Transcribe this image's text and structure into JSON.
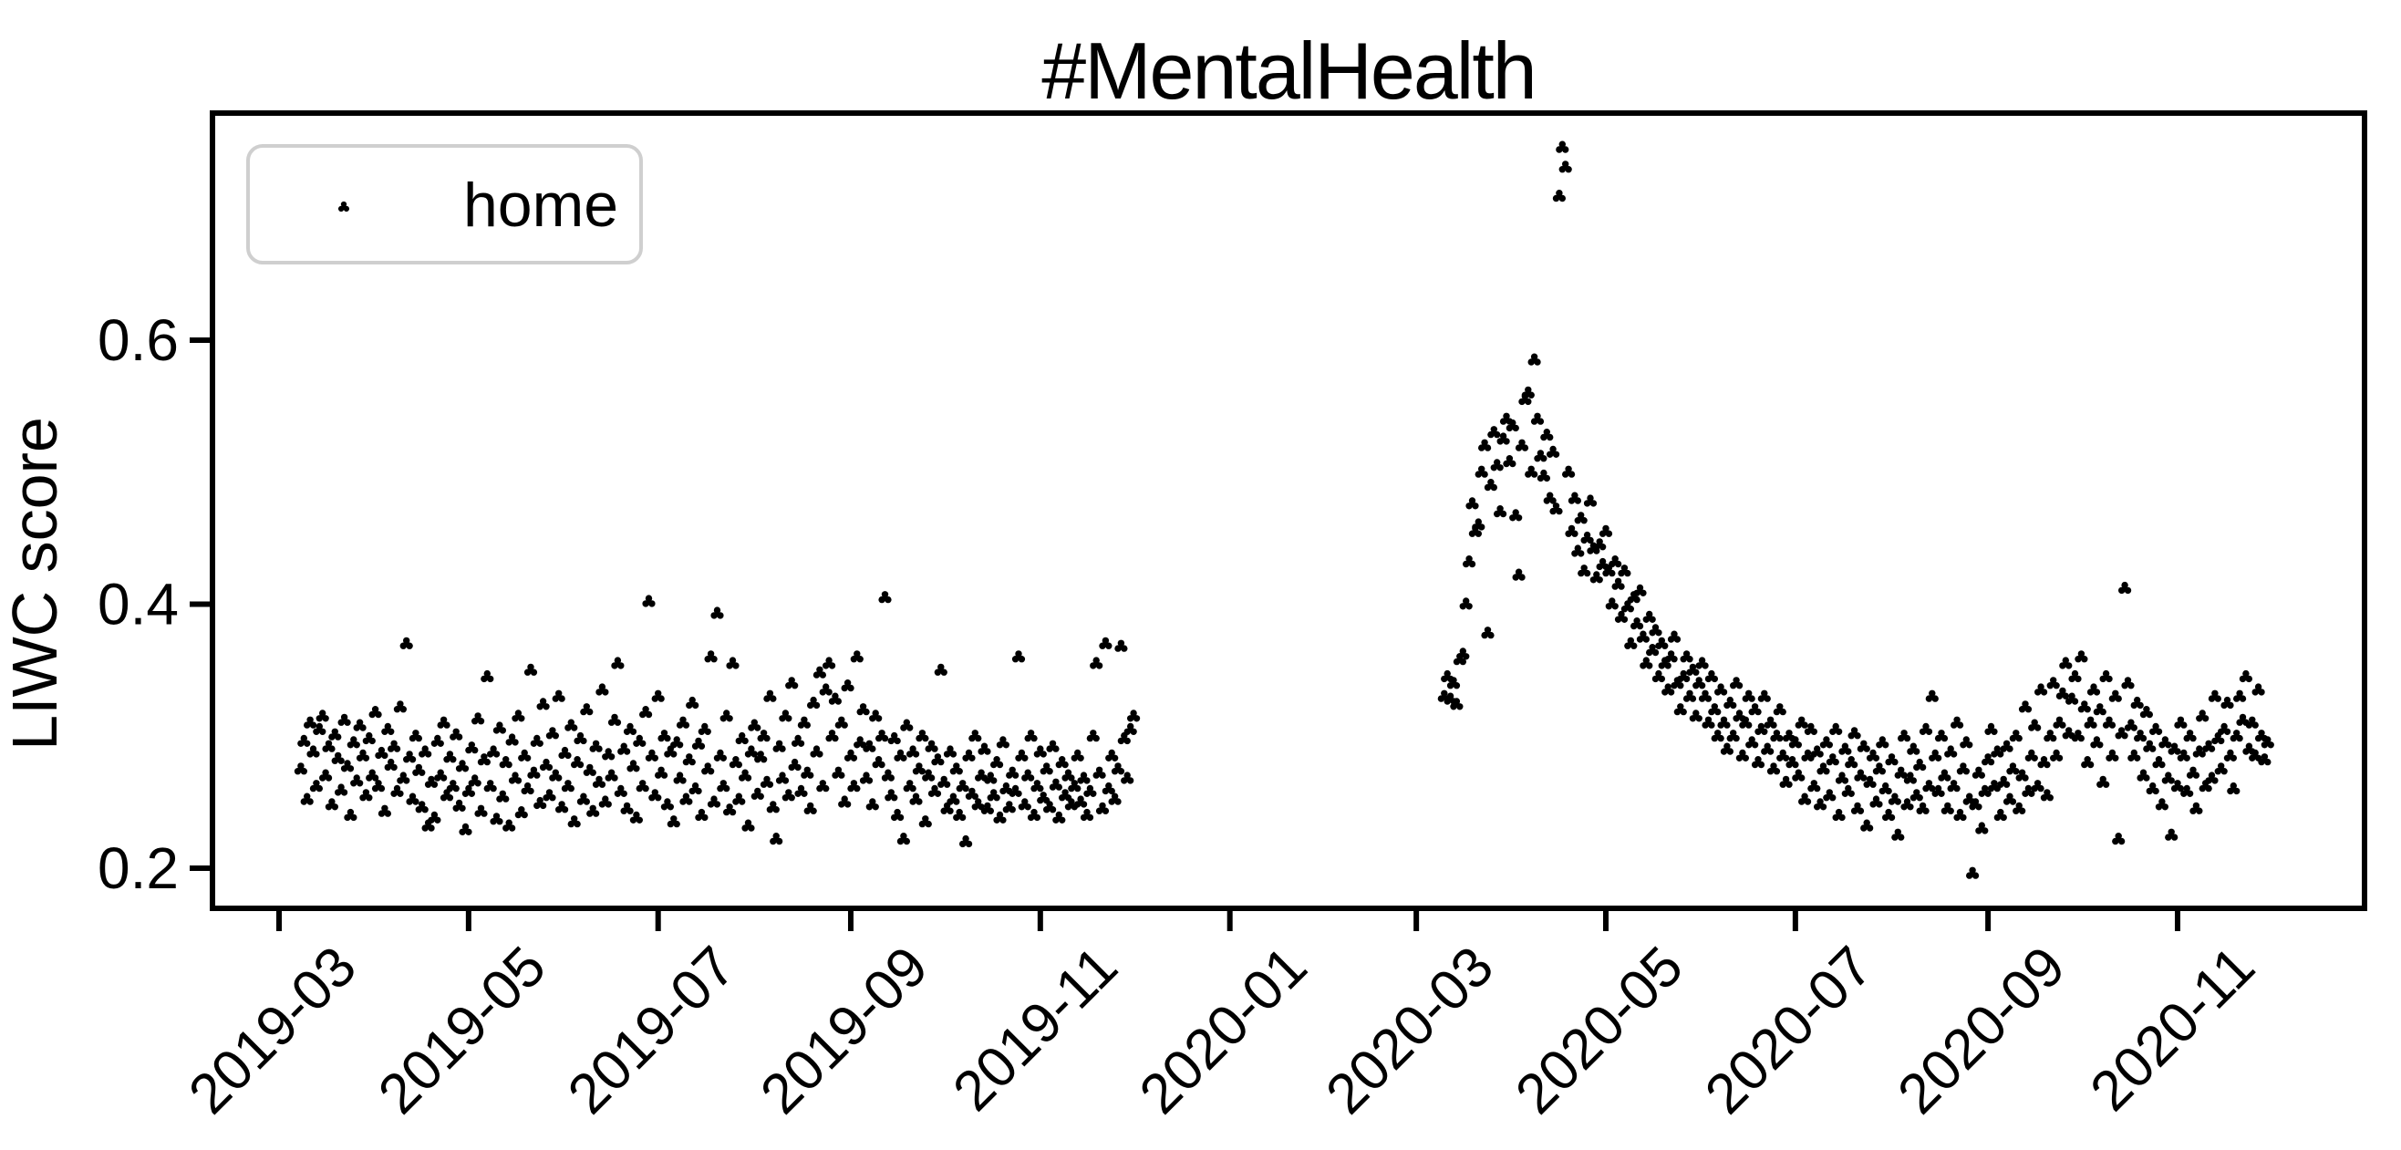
{
  "figure": {
    "background": "#ffffff",
    "ink_color": "#000000",
    "legend_border_color": "#cfcfcf"
  },
  "chart_data": {
    "type": "scatter",
    "title": "#MentalHealth",
    "xlabel": "",
    "ylabel": "LIWC score",
    "grid": false,
    "legend_position": "upper left",
    "legend_entries": [
      "home"
    ],
    "marker": "tri-clover",
    "marker_color": "#000000",
    "ylim": [
      0.17,
      0.772
    ],
    "xlim": [
      "2019-02-07",
      "2020-12-30"
    ],
    "y_ticks": [
      0.2,
      0.4,
      0.6
    ],
    "y_tick_labels": [
      "0.2",
      "0.4",
      "0.6"
    ],
    "x_ticks": [
      {
        "date": "2019-03-01",
        "label": "2019-03"
      },
      {
        "date": "2019-05-01",
        "label": "2019-05"
      },
      {
        "date": "2019-07-01",
        "label": "2019-07"
      },
      {
        "date": "2019-09-01",
        "label": "2019-09"
      },
      {
        "date": "2019-11-01",
        "label": "2019-11"
      },
      {
        "date": "2020-01-01",
        "label": "2020-01"
      },
      {
        "date": "2020-03-01",
        "label": "2020-03"
      },
      {
        "date": "2020-05-01",
        "label": "2020-05"
      },
      {
        "date": "2020-07-01",
        "label": "2020-07"
      },
      {
        "date": "2020-09-01",
        "label": "2020-09"
      },
      {
        "date": "2020-11-01",
        "label": "2020-11"
      }
    ],
    "series": [
      {
        "name": "home",
        "segments": [
          {
            "start": "2019-03-08",
            "step_days": 1,
            "values": [
              0.275,
              0.296,
              0.252,
              0.31,
              0.288,
              0.262,
              0.305,
              0.315,
              0.27,
              0.292,
              0.248,
              0.301,
              0.283,
              0.259,
              0.312,
              0.277,
              0.24,
              0.295,
              0.266,
              0.308,
              0.285,
              0.255,
              0.298,
              0.27,
              0.318,
              0.262,
              0.287,
              0.243,
              0.305,
              0.278,
              0.292,
              0.258,
              0.322,
              0.268,
              0.37,
              0.284,
              0.252,
              0.3,
              0.274,
              0.246,
              0.288,
              0.232,
              0.265,
              0.238,
              0.296,
              0.27,
              0.31,
              0.255,
              0.284,
              0.262,
              0.301,
              0.247,
              0.277,
              0.229,
              0.258,
              0.291,
              0.266,
              0.313,
              0.243,
              0.282,
              0.345,
              0.262,
              0.288,
              0.237,
              0.306,
              0.254,
              0.28,
              0.232,
              0.297,
              0.268,
              0.315,
              0.242,
              0.285,
              0.26,
              0.35,
              0.272,
              0.296,
              0.249,
              0.324,
              0.278,
              0.255,
              0.302,
              0.27,
              0.33,
              0.246,
              0.287,
              0.262,
              0.308,
              0.235,
              0.28,
              0.298,
              0.252,
              0.32,
              0.274,
              0.243,
              0.292,
              0.265,
              0.335,
              0.25,
              0.286,
              0.27,
              0.312,
              0.355,
              0.258,
              0.29,
              0.245,
              0.305,
              0.277,
              0.238,
              0.296,
              0.262,
              0.318,
              0.402,
              0.285,
              0.255,
              0.33,
              0.272,
              0.3,
              0.248,
              0.288,
              0.235,
              0.295,
              0.268,
              0.31,
              0.252,
              0.282,
              0.325,
              0.26,
              0.294,
              0.24,
              0.305,
              0.275,
              0.36,
              0.25,
              0.393,
              0.285,
              0.262,
              0.315,
              0.244,
              0.355,
              0.28,
              0.252,
              0.298,
              0.27,
              0.232,
              0.288,
              0.308,
              0.256,
              0.284,
              0.3,
              0.265,
              0.33,
              0.246,
              0.222,
              0.292,
              0.268,
              0.315,
              0.255,
              0.34,
              0.278,
              0.296,
              0.258,
              0.31,
              0.272,
              0.245,
              0.325,
              0.288,
              0.348,
              0.262,
              0.335,
              0.355,
              0.3,
              0.328,
              0.272,
              0.31,
              0.25,
              0.338,
              0.285,
              0.262,
              0.36,
              0.295,
              0.32,
              0.268,
              0.292,
              0.248,
              0.315,
              0.28,
              0.3,
              0.405,
              0.27,
              0.255,
              0.298,
              0.24,
              0.285,
              0.222,
              0.308,
              0.262,
              0.288,
              0.252,
              0.275,
              0.3,
              0.235,
              0.27,
              0.292,
              0.258,
              0.282,
              0.35,
              0.265,
              0.245,
              0.288,
              0.252,
              0.275,
              0.24,
              0.262,
              0.22,
              0.285,
              0.256,
              0.3,
              0.248,
              0.27,
              0.29,
              0.245,
              0.268,
              0.255,
              0.28,
              0.238,
              0.295,
              0.26,
              0.246,
              0.272,
              0.258,
              0.36,
              0.285,
              0.248,
              0.27,
              0.3,
              0.24,
              0.262,
              0.288,
              0.253,
              0.275,
              0.246,
              0.292,
              0.263,
              0.238,
              0.28,
              0.255,
              0.27,
              0.248,
              0.262,
              0.285,
              0.25,
              0.268,
              0.24,
              0.258,
              0.3,
              0.355,
              0.272,
              0.245,
              0.37,
              0.26,
              0.285,
              0.252,
              0.275,
              0.368,
              0.298,
              0.268,
              0.305,
              0.315
            ]
          },
          {
            "start": "2020-03-10",
            "step_days": 1,
            "values": [
              0.33,
              0.345,
              0.328,
              0.34,
              0.324,
              0.358,
              0.362,
              0.4,
              0.432,
              0.476,
              0.455,
              0.46,
              0.5,
              0.52,
              0.378,
              0.49,
              0.53,
              0.505,
              0.47,
              0.525,
              0.54,
              0.508,
              0.535,
              0.467,
              0.422,
              0.52,
              0.555,
              0.56,
              0.5,
              0.585,
              0.54,
              0.512,
              0.497,
              0.528,
              0.48,
              0.515,
              0.472,
              0.709,
              0.746,
              0.731,
              0.5,
              0.455,
              0.48,
              0.44,
              0.465,
              0.425,
              0.45,
              0.478,
              0.442,
              0.42,
              0.445,
              0.43,
              0.455,
              0.425,
              0.4,
              0.432,
              0.415,
              0.39,
              0.425,
              0.398,
              0.37,
              0.405,
              0.385,
              0.41,
              0.375,
              0.355,
              0.39,
              0.365,
              0.38,
              0.345,
              0.37,
              0.355,
              0.335,
              0.36,
              0.375,
              0.34,
              0.32,
              0.345,
              0.36,
              0.33,
              0.35,
              0.315,
              0.34,
              0.355,
              0.33,
              0.31,
              0.345,
              0.32,
              0.3,
              0.335,
              0.31,
              0.29,
              0.325,
              0.3,
              0.34,
              0.315,
              0.285,
              0.31,
              0.33,
              0.295,
              0.32,
              0.28,
              0.305,
              0.33,
              0.29,
              0.31,
              0.275,
              0.3,
              0.32,
              0.285,
              0.265,
              0.3,
              0.28,
              0.295,
              0.27,
              0.31,
              0.252,
              0.285,
              0.305,
              0.262,
              0.288,
              0.248,
              0.275,
              0.295,
              0.255,
              0.282,
              0.305,
              0.24,
              0.268,
              0.29,
              0.258,
              0.28,
              0.302,
              0.245,
              0.27,
              0.292,
              0.232,
              0.265,
              0.285,
              0.25,
              0.275,
              0.295,
              0.26,
              0.24,
              0.282,
              0.252,
              0.225,
              0.272,
              0.3,
              0.248,
              0.268,
              0.29,
              0.255,
              0.278,
              0.245,
              0.305,
              0.262,
              0.33,
              0.285,
              0.258,
              0.3,
              0.27,
              0.245,
              0.288,
              0.262,
              0.31,
              0.24,
              0.275,
              0.295,
              0.252,
              0.196,
              0.248,
              0.272,
              0.23,
              0.258,
              0.282,
              0.305,
              0.262,
              0.288,
              0.24,
              0.265,
              0.292,
              0.252,
              0.275,
              0.3,
              0.245,
              0.27,
              0.322,
              0.258,
              0.285,
              0.308,
              0.262,
              0.335,
              0.28,
              0.255,
              0.3,
              0.34,
              0.285,
              0.31,
              0.332,
              0.355,
              0.302,
              0.328,
              0.345,
              0.3,
              0.36,
              0.322,
              0.28,
              0.31,
              0.335,
              0.295,
              0.32,
              0.265,
              0.345,
              0.31,
              0.285,
              0.33,
              0.222,
              0.302,
              0.412,
              0.34,
              0.308,
              0.285,
              0.325,
              0.3,
              0.27,
              0.318,
              0.292,
              0.26,
              0.305,
              0.28,
              0.248,
              0.295,
              0.268,
              0.225,
              0.29,
              0.262,
              0.31,
              0.285,
              0.258,
              0.3,
              0.272,
              0.245,
              0.288,
              0.315,
              0.262,
              0.292,
              0.268,
              0.33,
              0.298,
              0.275,
              0.305,
              0.325,
              0.285,
              0.26,
              0.3,
              0.33,
              0.312,
              0.345,
              0.29,
              0.31,
              0.285,
              0.335,
              0.3,
              0.282,
              0.295
            ]
          }
        ]
      }
    ]
  }
}
